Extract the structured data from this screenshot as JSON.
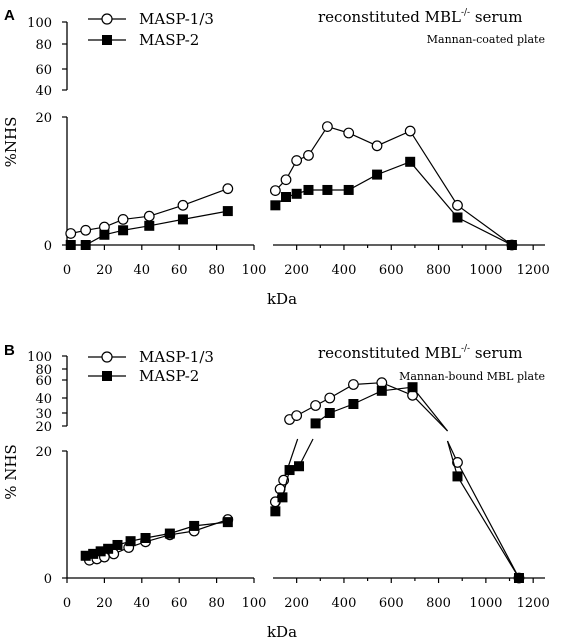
{
  "chart_data": [
    {
      "type": "line",
      "panel_label": "A",
      "title_main": "reconstituted MBL",
      "title_superscript": "-/-",
      "title_suffix": " serum",
      "subtitle": "Mannan-coated plate",
      "xlabel": "kDa",
      "ylabel": "%NHS",
      "x_ticks_left": [
        "0",
        "20",
        "40",
        "60",
        "80",
        "100"
      ],
      "x_ticks_right": [
        "200",
        "400",
        "600",
        "800",
        "1000",
        "1200"
      ],
      "y_ticks_lower": [
        "0",
        "20"
      ],
      "y_ticks_upper": [
        "40",
        "60",
        "80",
        "100"
      ],
      "xlim_left": [
        0,
        100
      ],
      "xlim_right": [
        100,
        1250
      ],
      "ylim_lower": [
        0,
        20
      ],
      "ylim_upper": [
        40,
        100
      ],
      "legend_position": "top-left",
      "series": [
        {
          "name": "MASP-1/3",
          "marker": "open-circle",
          "left": [
            [
              2,
              1.8
            ],
            [
              10,
              2.3
            ],
            [
              20,
              2.8
            ],
            [
              30,
              4.0
            ],
            [
              44,
              4.5
            ],
            [
              62,
              6.2
            ],
            [
              86,
              8.8
            ]
          ],
          "right": [
            [
              110,
              8.5
            ],
            [
              155,
              10.2
            ],
            [
              200,
              13.2
            ],
            [
              250,
              14.0
            ],
            [
              330,
              18.5
            ],
            [
              420,
              17.5
            ],
            [
              540,
              15.5
            ],
            [
              680,
              17.8
            ],
            [
              880,
              6.2
            ],
            [
              1110,
              0.0
            ]
          ]
        },
        {
          "name": "MASP-2",
          "marker": "filled-square",
          "left": [
            [
              2,
              0.0
            ],
            [
              10,
              0.0
            ],
            [
              20,
              1.6
            ],
            [
              30,
              2.3
            ],
            [
              44,
              3.0
            ],
            [
              62,
              4.0
            ],
            [
              86,
              5.3
            ]
          ],
          "right": [
            [
              110,
              6.2
            ],
            [
              155,
              7.5
            ],
            [
              200,
              8.0
            ],
            [
              250,
              8.6
            ],
            [
              330,
              8.6
            ],
            [
              420,
              8.6
            ],
            [
              540,
              11.0
            ],
            [
              680,
              13.0
            ],
            [
              880,
              4.3
            ],
            [
              1110,
              0.0
            ]
          ]
        }
      ]
    },
    {
      "type": "line",
      "panel_label": "B",
      "title_main": "reconstituted MBL",
      "title_superscript": "-/-",
      "title_suffix": " serum",
      "subtitle": "Mannan-bound MBL plate",
      "xlabel": "kDa",
      "ylabel": "% NHS",
      "x_ticks_left": [
        "0",
        "20",
        "40",
        "60",
        "80",
        "100"
      ],
      "x_ticks_right": [
        "200",
        "400",
        "600",
        "800",
        "1000",
        "1200"
      ],
      "y_ticks_lower": [
        "0",
        "20"
      ],
      "y_ticks_upper": [
        "20",
        "30",
        "40",
        "60",
        "80",
        "100"
      ],
      "xlim_left": [
        0,
        100
      ],
      "xlim_right": [
        100,
        1250
      ],
      "ylim_lower": [
        0,
        20
      ],
      "ylim_upper": [
        20,
        100
      ],
      "legend_position": "top-left",
      "series": [
        {
          "name": "MASP-1/3",
          "marker": "open-circle",
          "left": [
            [
              12,
              2.8
            ],
            [
              16,
              3.0
            ],
            [
              20,
              3.3
            ],
            [
              25,
              3.8
            ],
            [
              33,
              4.8
            ],
            [
              42,
              5.7
            ],
            [
              55,
              6.8
            ],
            [
              68,
              7.4
            ],
            [
              86,
              9.2
            ]
          ],
          "right_lower": [
            [
              110,
              12.0
            ],
            [
              130,
              14.0
            ],
            [
              145,
              15.4
            ],
            [
              880,
              18.2
            ],
            [
              1140,
              0.0
            ]
          ],
          "right_upper": [
            [
              170,
              25
            ],
            [
              200,
              28
            ],
            [
              280,
              35
            ],
            [
              340,
              40
            ],
            [
              440,
              55
            ],
            [
              560,
              57
            ],
            [
              690,
              43
            ]
          ]
        },
        {
          "name": "MASP-2",
          "marker": "filled-square",
          "left": [
            [
              10,
              3.5
            ],
            [
              14,
              3.8
            ],
            [
              18,
              4.2
            ],
            [
              22,
              4.6
            ],
            [
              27,
              5.2
            ],
            [
              34,
              5.8
            ],
            [
              42,
              6.3
            ],
            [
              55,
              7.0
            ],
            [
              68,
              8.2
            ],
            [
              86,
              8.8
            ]
          ],
          "right_lower": [
            [
              110,
              10.5
            ],
            [
              140,
              12.7
            ],
            [
              170,
              17.0
            ],
            [
              210,
              17.6
            ],
            [
              880,
              16.0
            ],
            [
              1140,
              0.0
            ]
          ],
          "right_upper": [
            [
              280,
              22
            ],
            [
              340,
              30
            ],
            [
              440,
              36
            ],
            [
              560,
              48
            ],
            [
              690,
              52
            ]
          ]
        }
      ]
    }
  ]
}
